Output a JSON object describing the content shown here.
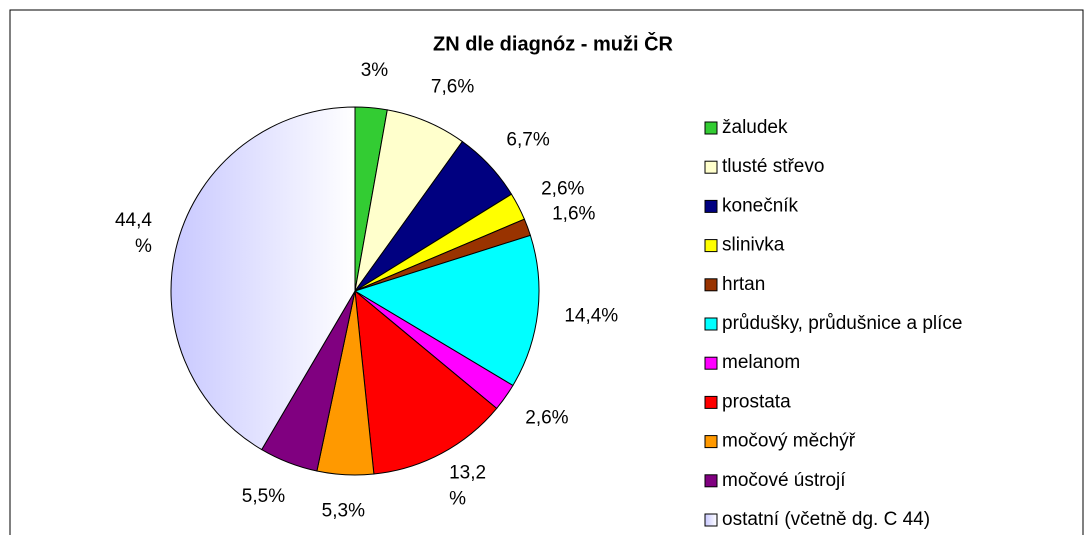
{
  "chart_data": {
    "type": "pie",
    "title": "ZN dle diagnóz - muži ČR",
    "categories": [
      "žaludek",
      "tlusté střevo",
      "konečník",
      "slinivka",
      "hrtan",
      "průdušky, průdušnice a plíce",
      "melanom",
      "prostata",
      "močový měchýř",
      "močové ústrojí",
      "ostatní (včetně dg. C 44)"
    ],
    "values": [
      3,
      7.6,
      6.7,
      2.6,
      1.6,
      14.4,
      2.6,
      13.2,
      5.3,
      5.5,
      44.4
    ],
    "value_labels": [
      "3%",
      "7,6%",
      "6,7%",
      "2,6%",
      "1,6%",
      "14,4%",
      "2,6%",
      "13,2 %",
      "5,3%",
      "5,5%",
      "44,4 %"
    ],
    "colors": [
      "#33cc33",
      "#ffffcc",
      "#000080",
      "#ffff00",
      "#993300",
      "#00ffff",
      "#ff00ff",
      "#ff0000",
      "#ff9900",
      "#800080",
      "#c8c8ff"
    ],
    "legend": "right"
  }
}
